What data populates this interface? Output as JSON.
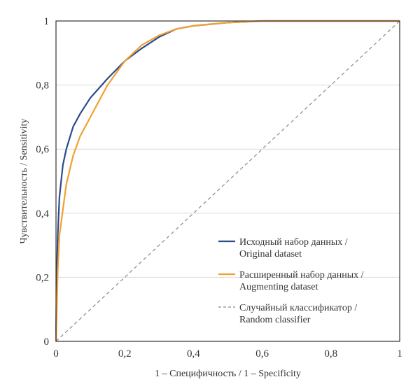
{
  "chart_data": {
    "type": "line",
    "xlabel": "1 – Специфичность / 1 – Specificity",
    "ylabel": "Чувствительность / Sensitivity",
    "xlim": [
      0,
      1
    ],
    "ylim": [
      0,
      1
    ],
    "grid": "horizontal",
    "legend_position": "bottom-right",
    "x_ticks": [
      {
        "value": 0,
        "label": "0"
      },
      {
        "value": 0.2,
        "label": "0,2"
      },
      {
        "value": 0.4,
        "label": "0,4"
      },
      {
        "value": 0.6,
        "label": "0,6"
      },
      {
        "value": 0.8,
        "label": "0,8"
      },
      {
        "value": 1,
        "label": "1"
      }
    ],
    "y_ticks": [
      {
        "value": 0,
        "label": "0"
      },
      {
        "value": 0.2,
        "label": "0,2"
      },
      {
        "value": 0.4,
        "label": "0,4"
      },
      {
        "value": 0.6,
        "label": "0,6"
      },
      {
        "value": 0.8,
        "label": "0,8"
      },
      {
        "value": 1,
        "label": "1"
      }
    ],
    "series": [
      {
        "name": "Исходный набор данных /",
        "name_line2": "Original dataset",
        "color": "#2b4b8c",
        "style": "solid",
        "x": [
          0,
          0.002,
          0.005,
          0.01,
          0.02,
          0.03,
          0.05,
          0.07,
          0.1,
          0.15,
          0.2,
          0.25,
          0.3,
          0.35,
          0.4,
          0.5,
          0.6,
          0.7,
          0.8,
          0.9,
          1.0
        ],
        "y": [
          0,
          0.2,
          0.33,
          0.45,
          0.55,
          0.6,
          0.67,
          0.71,
          0.76,
          0.82,
          0.875,
          0.915,
          0.95,
          0.975,
          0.985,
          0.995,
          1.0,
          1.0,
          1.0,
          1.0,
          1.0
        ]
      },
      {
        "name": "Расширенный набор данных /",
        "name_line2": "Augmenting dataset",
        "color": "#f0a030",
        "style": "solid",
        "x": [
          0,
          0.002,
          0.005,
          0.01,
          0.02,
          0.03,
          0.05,
          0.07,
          0.1,
          0.15,
          0.2,
          0.25,
          0.3,
          0.35,
          0.4,
          0.5,
          0.6,
          0.7,
          0.8,
          0.9,
          1.0
        ],
        "y": [
          0,
          0.08,
          0.22,
          0.33,
          0.41,
          0.49,
          0.58,
          0.64,
          0.7,
          0.8,
          0.875,
          0.925,
          0.955,
          0.975,
          0.985,
          0.995,
          1.0,
          1.0,
          1.0,
          1.0,
          1.0
        ]
      },
      {
        "name": "Случайный классификатор /",
        "name_line2": "Random classifier",
        "color": "#8a8a8a",
        "style": "dashed",
        "x": [
          0,
          1
        ],
        "y": [
          0,
          1
        ]
      }
    ]
  }
}
